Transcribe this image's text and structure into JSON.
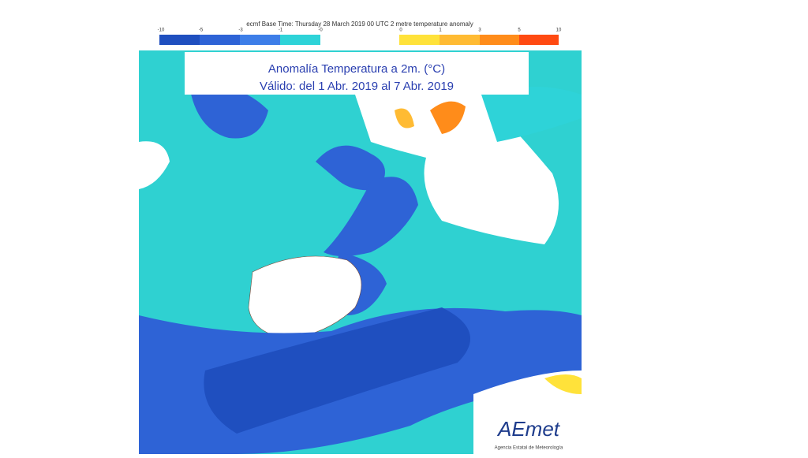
{
  "header": {
    "title": "ecmf  Base Time: Thursday 28 March 2019 00 UTC 2 metre temperature anomaly"
  },
  "legend": {
    "cold_labels": [
      "-10",
      "-5",
      "-3",
      "-1",
      "-0"
    ],
    "warm_labels": [
      "0",
      "1",
      "3",
      "5",
      "10"
    ]
  },
  "map": {
    "title_line1": "Anomalía Temperatura a 2m. (°C)",
    "title_line2": "Válido: del 1 Abr. 2019 al 7 Abr. 2019"
  },
  "logo": {
    "name": "AEmet",
    "subtitle": "Agencia Estatal de Meteorología"
  }
}
